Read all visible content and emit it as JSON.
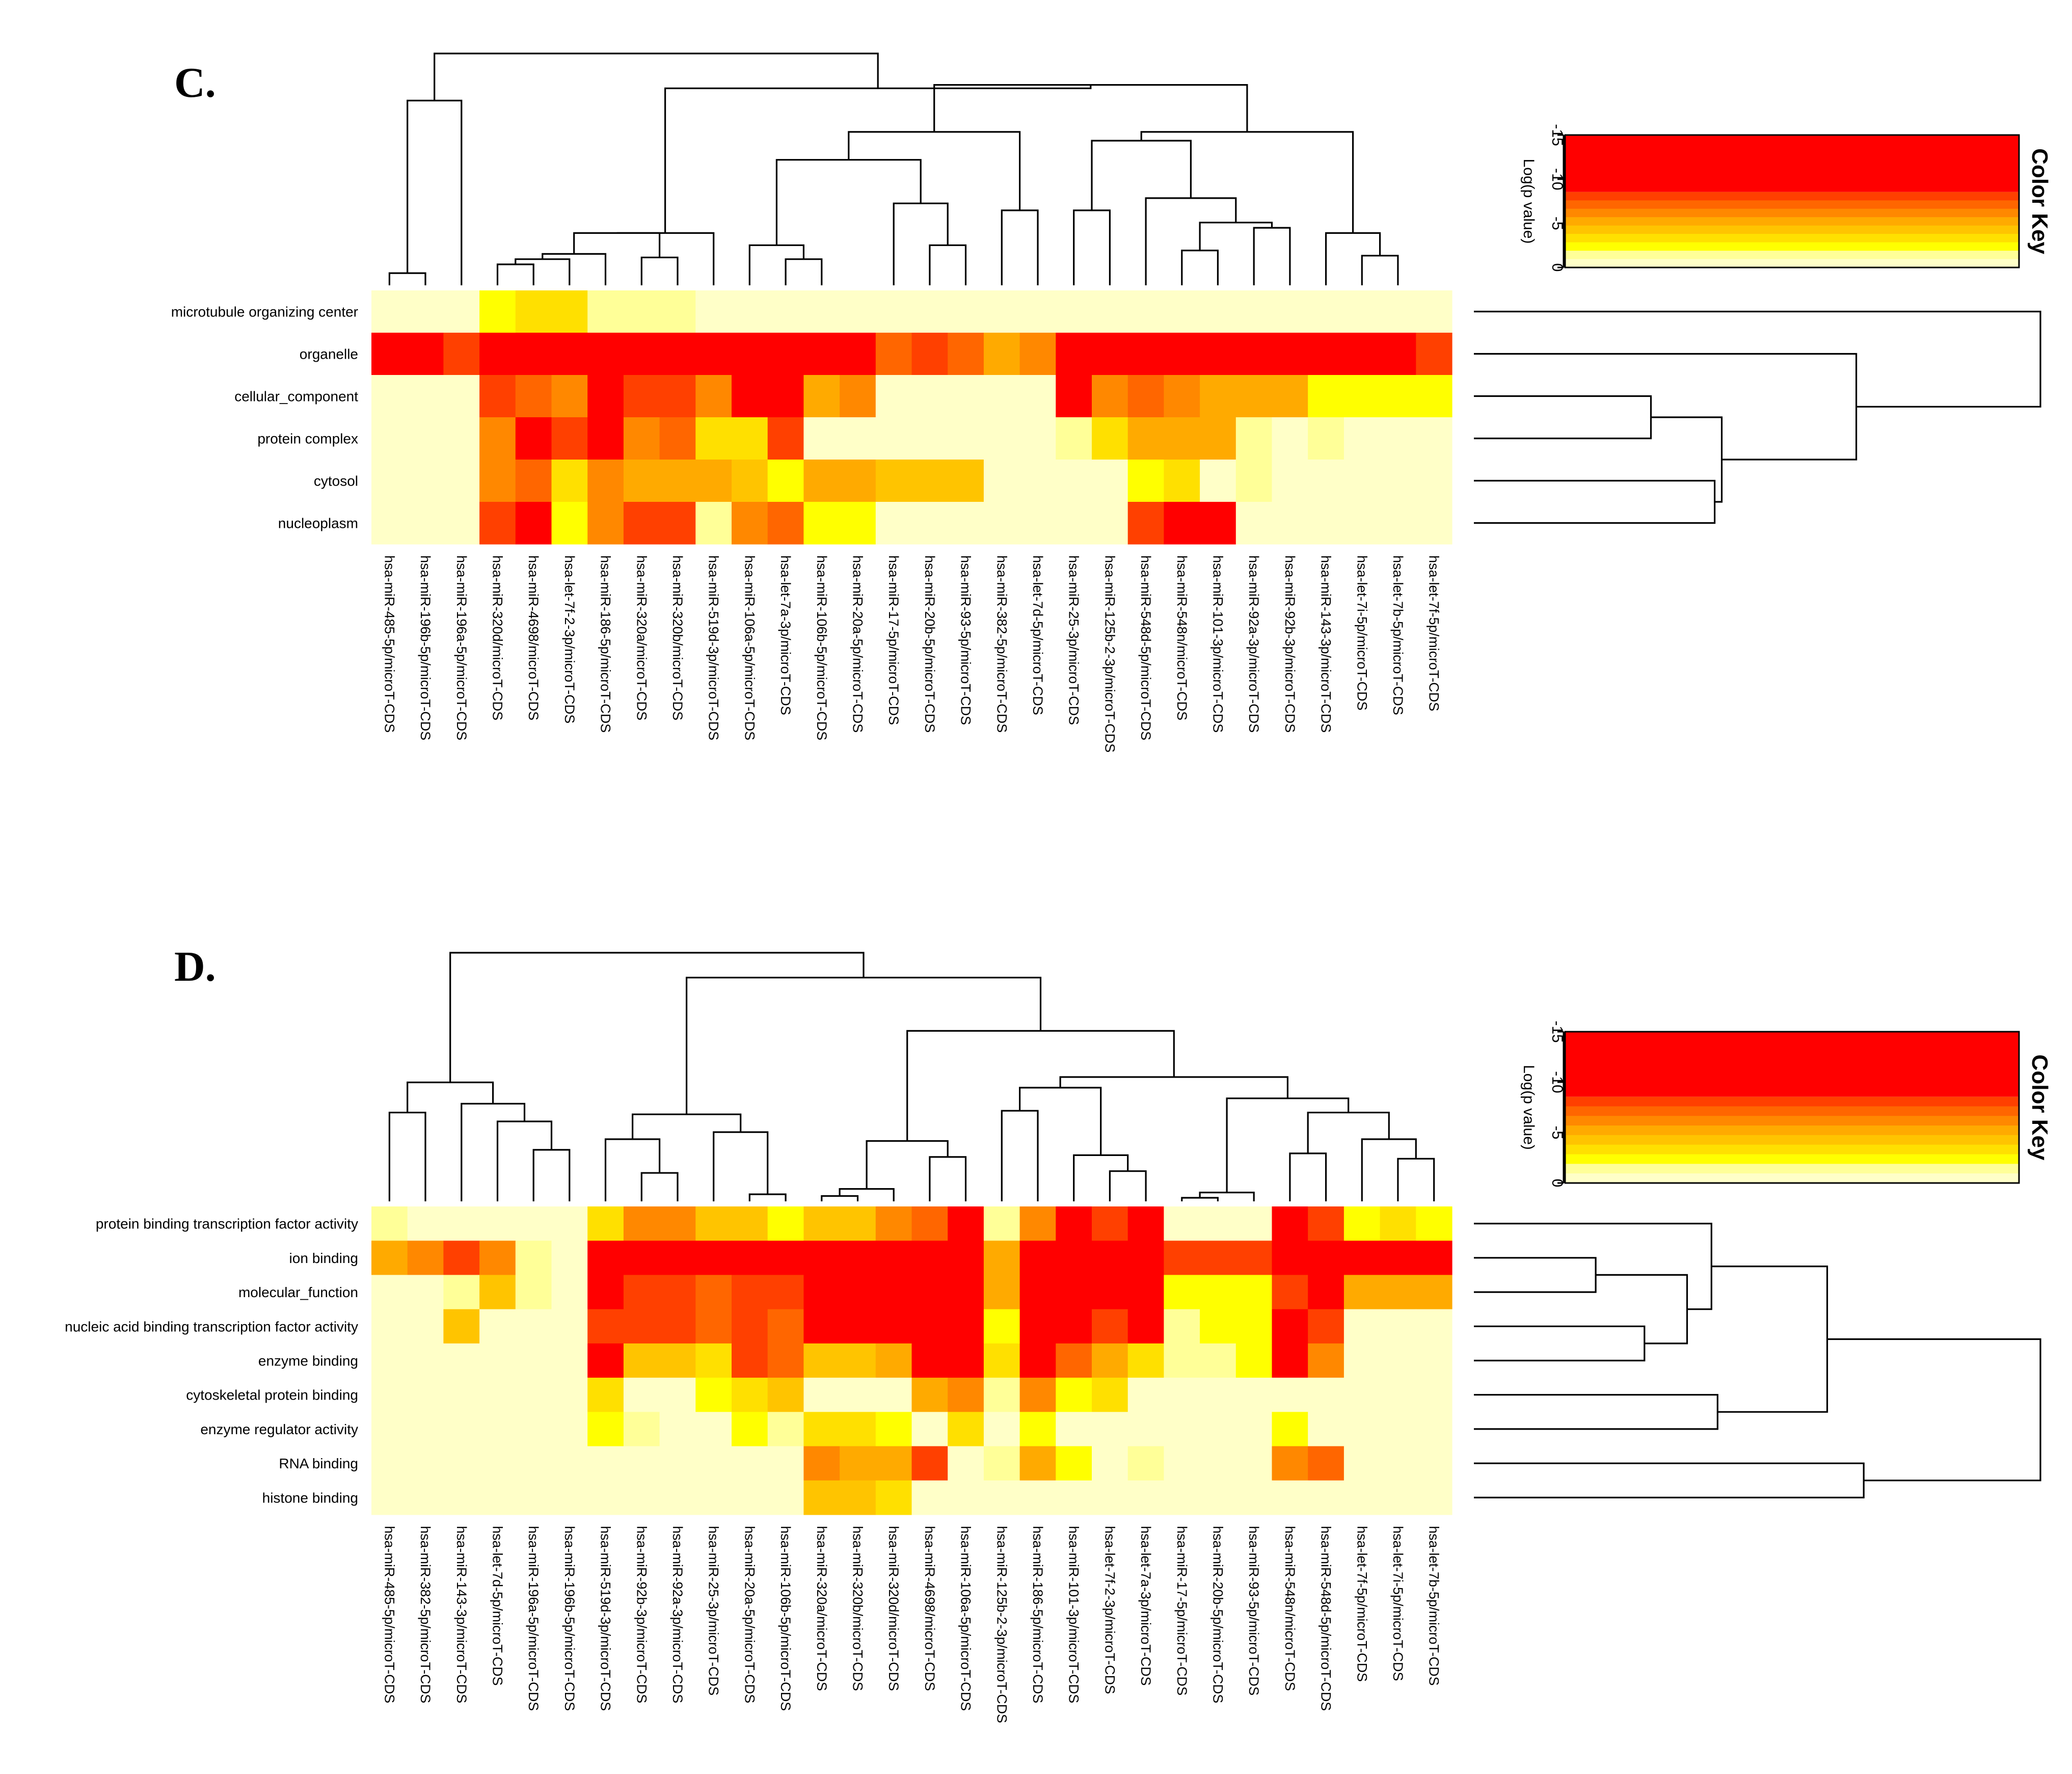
{
  "palette": [
    "#FFFFC8",
    "#FFFF98",
    "#FFFF00",
    "#FFE000",
    "#FFC400",
    "#FFAA00",
    "#FF8800",
    "#FF6600",
    "#FF4000",
    "#FF0000"
  ],
  "chart_data": [
    {
      "type": "heatmap",
      "panel_label": "C.",
      "rows": [
        "microtubule organizing center",
        "organelle",
        "cellular_component",
        "protein complex",
        "cytosol",
        "nucleoplasm"
      ],
      "columns": [
        "hsa-miR-485-5p/microT-CDS",
        "hsa-miR-196b-5p/microT-CDS",
        "hsa-miR-196a-5p/microT-CDS",
        "hsa-miR-320d/microT-CDS",
        "hsa-miR-4698/microT-CDS",
        "hsa-let-7f-2-3p/microT-CDS",
        "hsa-miR-186-5p/microT-CDS",
        "hsa-miR-320a/microT-CDS",
        "hsa-miR-320b/microT-CDS",
        "hsa-miR-519d-3p/microT-CDS",
        "hsa-miR-106a-5p/microT-CDS",
        "hsa-let-7a-3p/microT-CDS",
        "hsa-miR-106b-5p/microT-CDS",
        "hsa-miR-20a-5p/microT-CDS",
        "hsa-miR-17-5p/microT-CDS",
        "hsa-miR-20b-5p/microT-CDS",
        "hsa-miR-93-5p/microT-CDS",
        "hsa-miR-382-5p/microT-CDS",
        "hsa-let-7d-5p/microT-CDS",
        "hsa-miR-25-3p/microT-CDS",
        "hsa-miR-125b-2-3p/microT-CDS",
        "hsa-miR-548d-5p/microT-CDS",
        "hsa-miR-548n/microT-CDS",
        "hsa-miR-101-3p/microT-CDS",
        "hsa-miR-92a-3p/microT-CDS",
        "hsa-miR-92b-3p/microT-CDS",
        "hsa-miR-143-3p/microT-CDS",
        "hsa-let-7i-5p/microT-CDS",
        "hsa-let-7b-5p/microT-CDS",
        "hsa-let-7f-5p/microT-CDS"
      ],
      "values": [
        [
          0,
          0,
          0,
          2,
          3,
          3,
          1,
          1,
          1,
          0,
          0,
          0,
          0,
          0,
          0,
          0,
          0,
          0,
          0,
          0,
          0,
          0,
          0,
          0,
          0,
          0,
          0,
          0,
          0,
          0
        ],
        [
          9,
          9,
          8,
          9,
          9,
          9,
          9,
          9,
          9,
          9,
          9,
          9,
          9,
          9,
          7,
          8,
          7,
          5,
          6,
          9,
          9,
          9,
          9,
          9,
          9,
          9,
          9,
          9,
          9,
          8
        ],
        [
          0,
          0,
          0,
          8,
          7,
          6,
          9,
          8,
          8,
          6,
          9,
          9,
          5,
          6,
          0,
          0,
          0,
          0,
          0,
          9,
          6,
          7,
          6,
          5,
          5,
          5,
          2,
          2,
          2,
          2
        ],
        [
          0,
          0,
          0,
          6,
          9,
          8,
          9,
          6,
          7,
          3,
          3,
          8,
          0,
          0,
          0,
          0,
          0,
          0,
          0,
          1,
          3,
          5,
          5,
          5,
          1,
          0,
          1,
          0,
          0,
          0
        ],
        [
          0,
          0,
          0,
          6,
          7,
          3,
          6,
          5,
          5,
          5,
          4,
          2,
          5,
          5,
          4,
          4,
          4,
          0,
          0,
          0,
          0,
          2,
          3,
          0,
          1,
          0,
          0,
          0,
          0,
          0
        ],
        [
          0,
          0,
          0,
          8,
          9,
          2,
          6,
          8,
          8,
          1,
          6,
          7,
          2,
          2,
          0,
          0,
          0,
          0,
          0,
          0,
          0,
          8,
          9,
          9,
          0,
          0,
          0,
          0,
          0,
          0
        ]
      ],
      "value_label": "Log(p value)",
      "key_title": "Color Key",
      "key_ticks": [
        "-15",
        "-10",
        "-5",
        "0"
      ],
      "col_dendrogram": [
        [
          0,
          1,
          "a"
        ],
        [
          3,
          4,
          "b"
        ],
        [
          5,
          "b",
          "c"
        ],
        [
          6,
          "c",
          "d"
        ],
        [
          7,
          8,
          "e"
        ],
        [
          "d",
          "e",
          "f"
        ],
        [
          9,
          "f",
          "g"
        ],
        [
          11,
          12,
          "h"
        ],
        [
          10,
          "h",
          "i"
        ],
        [
          15,
          16,
          "j"
        ],
        [
          14,
          "j",
          "k"
        ],
        [
          "i",
          "k",
          "l"
        ],
        [
          17,
          18,
          "m"
        ],
        [
          "l",
          "m",
          "n"
        ],
        [
          22,
          23,
          "o"
        ],
        [
          24,
          25,
          "p"
        ],
        [
          "o",
          "p",
          "q"
        ],
        [
          21,
          "q",
          "r"
        ],
        [
          19,
          20,
          "s"
        ],
        [
          "r",
          "s",
          "t"
        ],
        [
          27,
          28,
          "u"
        ],
        [
          26,
          "u",
          "v"
        ],
        [
          "t",
          "v",
          "w"
        ],
        [
          "n",
          "w",
          "x"
        ],
        [
          2,
          "a",
          "y"
        ],
        [
          "g",
          "x",
          "z"
        ],
        [
          "y",
          "z",
          "R"
        ]
      ],
      "col_dendrogram_heights": [
        0.07,
        0.12,
        0.15,
        0.18,
        0.16,
        0.3,
        0.3,
        0.15,
        0.23,
        0.23,
        0.47,
        0.72,
        0.43,
        0.88,
        0.2,
        0.33,
        0.36,
        0.5,
        0.43,
        0.83,
        0.17,
        0.3,
        0.88,
        1.15,
        1.06,
        1.13,
        1.33
      ],
      "row_dendrogram": [
        [
          2,
          3,
          "a"
        ],
        [
          4,
          5,
          "b"
        ],
        [
          "a",
          "b",
          "c"
        ],
        [
          1,
          "c",
          "d"
        ],
        [
          0,
          "d",
          "R"
        ]
      ],
      "row_dendrogram_heights": [
        0.25,
        0.34,
        0.35,
        0.54,
        0.8
      ]
    },
    {
      "type": "heatmap",
      "panel_label": "D.",
      "rows": [
        "protein binding transcription factor activity",
        "ion binding",
        "molecular_function",
        "nucleic acid binding transcription factor activity",
        "enzyme binding",
        "cytoskeletal protein binding",
        "enzyme regulator activity",
        "RNA binding",
        "histone binding"
      ],
      "columns": [
        "hsa-miR-485-5p/microT-CDS",
        "hsa-miR-382-5p/microT-CDS",
        "hsa-miR-143-3p/microT-CDS",
        "hsa-let-7d-5p/microT-CDS",
        "hsa-miR-196a-5p/microT-CDS",
        "hsa-miR-196b-5p/microT-CDS",
        "hsa-miR-519d-3p/microT-CDS",
        "hsa-miR-92b-3p/microT-CDS",
        "hsa-miR-92a-3p/microT-CDS",
        "hsa-miR-25-3p/microT-CDS",
        "hsa-miR-20a-5p/microT-CDS",
        "hsa-miR-106b-5p/microT-CDS",
        "hsa-miR-320a/microT-CDS",
        "hsa-miR-320b/microT-CDS",
        "hsa-miR-320d/microT-CDS",
        "hsa-miR-4698/microT-CDS",
        "hsa-miR-106a-5p/microT-CDS",
        "hsa-miR-125b-2-3p/microT-CDS",
        "hsa-miR-186-5p/microT-CDS",
        "hsa-miR-101-3p/microT-CDS",
        "hsa-let-7f-2-3p/microT-CDS",
        "hsa-let-7a-3p/microT-CDS",
        "hsa-miR-17-5p/microT-CDS",
        "hsa-miR-20b-5p/microT-CDS",
        "hsa-miR-93-5p/microT-CDS",
        "hsa-miR-548n/microT-CDS",
        "hsa-miR-548d-5p/microT-CDS",
        "hsa-let-7f-5p/microT-CDS",
        "hsa-let-7i-5p/microT-CDS",
        "hsa-let-7b-5p/microT-CDS"
      ],
      "values": [
        [
          1,
          0,
          0,
          0,
          0,
          0,
          3,
          6,
          6,
          4,
          4,
          2,
          4,
          4,
          6,
          7,
          9,
          1,
          6,
          9,
          8,
          9,
          0,
          0,
          0,
          9,
          8,
          2,
          3,
          2
        ],
        [
          5,
          6,
          8,
          6,
          1,
          0,
          9,
          9,
          9,
          9,
          9,
          9,
          9,
          9,
          9,
          9,
          9,
          5,
          9,
          9,
          9,
          9,
          8,
          8,
          8,
          9,
          9,
          9,
          9,
          9
        ],
        [
          0,
          0,
          1,
          4,
          1,
          0,
          9,
          8,
          8,
          7,
          8,
          8,
          9,
          9,
          9,
          9,
          9,
          5,
          9,
          9,
          9,
          9,
          2,
          2,
          2,
          8,
          9,
          5,
          5,
          5
        ],
        [
          0,
          0,
          4,
          0,
          0,
          0,
          8,
          8,
          8,
          7,
          8,
          7,
          9,
          9,
          9,
          9,
          9,
          2,
          9,
          9,
          8,
          9,
          1,
          2,
          2,
          9,
          8,
          0,
          0,
          0
        ],
        [
          0,
          0,
          0,
          0,
          0,
          0,
          9,
          4,
          4,
          3,
          8,
          7,
          4,
          4,
          5,
          9,
          9,
          3,
          9,
          7,
          5,
          3,
          1,
          1,
          2,
          9,
          6,
          0,
          0,
          0
        ],
        [
          0,
          0,
          0,
          0,
          0,
          0,
          3,
          0,
          0,
          2,
          3,
          4,
          0,
          0,
          0,
          5,
          6,
          1,
          6,
          2,
          3,
          0,
          0,
          0,
          0,
          0,
          0,
          0,
          0,
          0
        ],
        [
          0,
          0,
          0,
          0,
          0,
          0,
          2,
          1,
          0,
          0,
          2,
          1,
          3,
          3,
          2,
          0,
          3,
          0,
          2,
          0,
          0,
          0,
          0,
          0,
          0,
          2,
          0,
          0,
          0,
          0
        ],
        [
          0,
          0,
          0,
          0,
          0,
          0,
          0,
          0,
          0,
          0,
          0,
          0,
          6,
          5,
          5,
          8,
          0,
          1,
          5,
          2,
          0,
          1,
          0,
          0,
          0,
          6,
          7,
          0,
          0,
          0
        ],
        [
          0,
          0,
          0,
          0,
          0,
          0,
          0,
          0,
          0,
          0,
          0,
          0,
          4,
          4,
          3,
          0,
          0,
          0,
          0,
          0,
          0,
          0,
          0,
          0,
          0,
          0,
          0,
          0,
          0,
          0
        ]
      ],
      "value_label": "Log(p value)",
      "key_title": "Color Key",
      "key_ticks": [
        "-15",
        "-10",
        "-5",
        "0"
      ],
      "col_dendrogram": [
        [
          4,
          5,
          "a"
        ],
        [
          3,
          "a",
          "b"
        ],
        [
          0,
          1,
          "c"
        ],
        [
          2,
          "b",
          "d"
        ],
        [
          "c",
          "d",
          "e"
        ],
        [
          7,
          8,
          "f"
        ],
        [
          6,
          "f",
          "g"
        ],
        [
          10,
          11,
          "h"
        ],
        [
          9,
          "h",
          "i"
        ],
        [
          "g",
          "i",
          "j"
        ],
        [
          12,
          13,
          "k"
        ],
        [
          "k",
          14,
          "l"
        ],
        [
          15,
          16,
          "m"
        ],
        [
          "l",
          "m",
          "n"
        ],
        [
          20,
          21,
          "o"
        ],
        [
          19,
          "o",
          "p"
        ],
        [
          17,
          18,
          "q"
        ],
        [
          "q",
          "p",
          "r"
        ],
        [
          22,
          23,
          "s"
        ],
        [
          "s",
          24,
          "t"
        ],
        [
          25,
          26,
          "u"
        ],
        [
          28,
          29,
          "v"
        ],
        [
          27,
          "v",
          "w"
        ],
        [
          "u",
          "w",
          "x"
        ],
        [
          "t",
          "x",
          "y"
        ],
        [
          "r",
          "y",
          "z"
        ],
        [
          "n",
          "z",
          "A"
        ],
        [
          "j",
          "A",
          "B"
        ],
        [
          "e",
          "B",
          "R"
        ]
      ],
      "col_dendrogram_heights": [
        0.29,
        0.45,
        0.5,
        0.55,
        0.67,
        0.16,
        0.35,
        0.04,
        0.39,
        0.49,
        0.03,
        0.07,
        0.25,
        0.34,
        0.17,
        0.26,
        0.51,
        0.64,
        0.02,
        0.05,
        0.27,
        0.24,
        0.35,
        0.5,
        0.58,
        0.7,
        0.96,
        1.26,
        1.4
      ],
      "row_dendrogram": [
        [
          1,
          2,
          "a"
        ],
        [
          3,
          4,
          "b"
        ],
        [
          "a",
          "b",
          "c"
        ],
        [
          0,
          "c",
          "d"
        ],
        [
          5,
          6,
          "e"
        ],
        [
          "d",
          "e",
          "f"
        ],
        [
          7,
          8,
          "g"
        ],
        [
          "f",
          "g",
          "R"
        ]
      ],
      "row_dendrogram_heights": [
        0.2,
        0.28,
        0.35,
        0.39,
        0.4,
        0.58,
        0.64,
        0.93
      ]
    }
  ]
}
